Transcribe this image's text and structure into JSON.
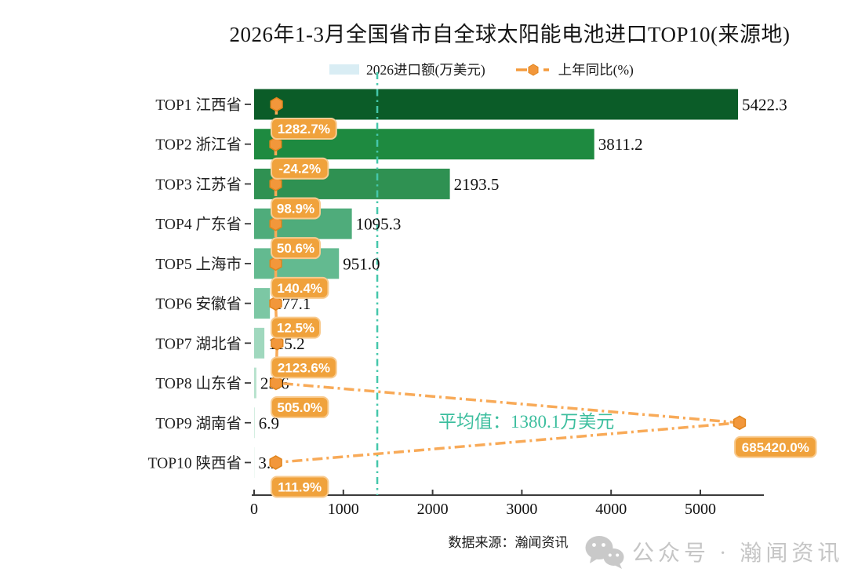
{
  "title": "2026年1-3月全国省市自全球太阳能电池进口TOP10(来源地)",
  "legend": {
    "bar_label": "2026进口额(万美元)",
    "line_label": "上年同比(%)"
  },
  "chart_data": {
    "type": "bar",
    "orientation": "horizontal",
    "categories": [
      "TOP1 江西省",
      "TOP2 浙江省",
      "TOP3 江苏省",
      "TOP4 广东省",
      "TOP5 上海市",
      "TOP6 安徽省",
      "TOP7 湖北省",
      "TOP8 山东省",
      "TOP9 湖南省",
      "TOP10 陕西省"
    ],
    "series": [
      {
        "name": "2026进口额(万美元)",
        "values": [
          5422.3,
          3811.2,
          2193.5,
          1095.3,
          951.0,
          177.1,
          115.2,
          25.6,
          6.9,
          3.2
        ]
      },
      {
        "name": "上年同比(%)",
        "values": [
          1282.7,
          -24.2,
          98.9,
          50.6,
          140.4,
          12.5,
          2123.6,
          505.0,
          685420.0,
          111.9
        ]
      }
    ],
    "x_ticks": [
      0,
      1000,
      2000,
      3000,
      4000,
      5000
    ],
    "xlim": [
      0,
      5720
    ],
    "grid": false,
    "legend_position": "top",
    "average": {
      "label": "平均值：1380.1万美元",
      "value": 1380.1
    },
    "bar_colors": [
      "#0B5C28",
      "#1E8A40",
      "#2F9152",
      "#4FAC7B",
      "#63BA90",
      "#7CC7A4",
      "#A0D8BE",
      "#B7E2CD",
      "#C9EAD9",
      "#DBF1E5"
    ],
    "accent_orange": "#F2973B",
    "line_orange": "#F8AA58",
    "badge_fill": "#F0A23C",
    "badge_border": "#F8CB90",
    "accent_teal": "#45C7AB",
    "teal_text": "#3CBE9E"
  },
  "footer": {
    "source": "数据来源：瀚闻资讯",
    "watermark": "公众号 · 瀚闻资讯"
  }
}
